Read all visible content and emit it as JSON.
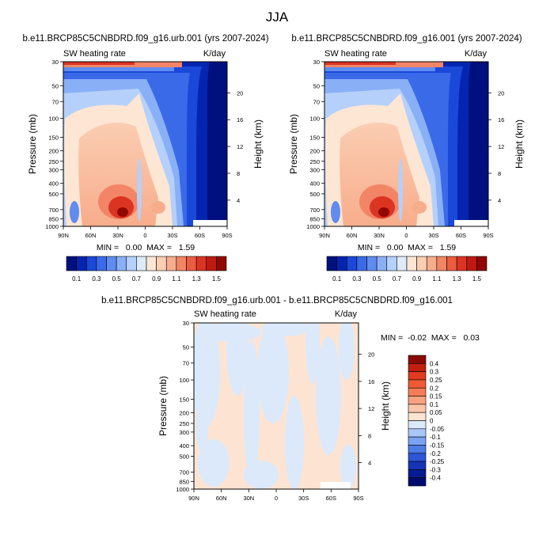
{
  "title": "JJA",
  "chart_data": [
    {
      "type": "heatmap",
      "title": "b.e11.BRCP85C5CNBDRD.f09_g16.urb.001 (yrs 2007-2024)",
      "left_label": "SW heating rate",
      "right_label": "K/day",
      "ylabel": "Pressure (mb)",
      "y2label": "Height (km)",
      "x_ticks": [
        "90N",
        "60N",
        "30N",
        "0",
        "30S",
        "60S",
        "90S"
      ],
      "y_ticks": [
        "30",
        "50",
        "70",
        "100",
        "150",
        "200",
        "250",
        "300",
        "400",
        "500",
        "700",
        "850",
        "1000"
      ],
      "y2_ticks": [
        "20",
        "16",
        "12",
        "8",
        "4"
      ],
      "stats": "MIN =   0.00  MAX =   1.59",
      "colorbar_labels": [
        "0.1",
        "0.3",
        "0.5",
        "0.7",
        "0.9",
        "1.1",
        "1.3",
        "1.5"
      ],
      "colors": [
        "#00107f",
        "#0525b0",
        "#1a48d8",
        "#3a6ae8",
        "#5f8cf0",
        "#89b0f7",
        "#b5d0fa",
        "#dcecfb",
        "#fde6d4",
        "#fbcdb2",
        "#f7ad8c",
        "#f28565",
        "#ec5c3f",
        "#dc3423",
        "#bf1a10",
        "#900802"
      ]
    },
    {
      "type": "heatmap",
      "title": "b.e11.BRCP85C5CNBDRD.f09_g16.001 (yrs 2007-2024)",
      "left_label": "SW heating rate",
      "right_label": "K/day",
      "ylabel": "Pressure (mb)",
      "y2label": "Height (km)",
      "x_ticks": [
        "90N",
        "60N",
        "30N",
        "0",
        "30S",
        "60S",
        "90S"
      ],
      "y_ticks": [
        "30",
        "50",
        "70",
        "100",
        "150",
        "200",
        "250",
        "300",
        "400",
        "500",
        "700",
        "850",
        "1000"
      ],
      "y2_ticks": [
        "20",
        "16",
        "12",
        "8",
        "4"
      ],
      "stats": "MIN =   0.00  MAX =   1.59",
      "colorbar_labels": [
        "0.1",
        "0.3",
        "0.5",
        "0.7",
        "0.9",
        "1.1",
        "1.3",
        "1.5"
      ],
      "colors": [
        "#00107f",
        "#0525b0",
        "#1a48d8",
        "#3a6ae8",
        "#5f8cf0",
        "#89b0f7",
        "#b5d0fa",
        "#dcecfb",
        "#fde6d4",
        "#fbcdb2",
        "#f7ad8c",
        "#f28565",
        "#ec5c3f",
        "#dc3423",
        "#bf1a10",
        "#900802"
      ]
    },
    {
      "type": "heatmap",
      "title": "b.e11.BRCP85C5CNBDRD.f09_g16.urb.001 - b.e11.BRCP85C5CNBDRD.f09_g16.001",
      "left_label": "SW heating rate",
      "right_label": "K/day",
      "ylabel": "Pressure (mb)",
      "y2label": "Height (km)",
      "x_ticks": [
        "90N",
        "60N",
        "30N",
        "0",
        "30S",
        "60S",
        "90S"
      ],
      "y_ticks": [
        "30",
        "50",
        "70",
        "100",
        "150",
        "200",
        "250",
        "300",
        "400",
        "500",
        "700",
        "850",
        "1000"
      ],
      "y2_ticks": [
        "20",
        "16",
        "12",
        "8",
        "4"
      ],
      "stats": "MIN =  -0.02  MAX =   0.03",
      "colorbar_labels": [
        "0.4",
        "0.3",
        "0.25",
        "0.2",
        "0.15",
        "0.1",
        "0.05",
        "0",
        "-0.05",
        "-0.1",
        "-0.15",
        "-0.2",
        "-0.25",
        "-0.3",
        "-0.4"
      ],
      "colors": [
        "#8b0a05",
        "#c0200f",
        "#e03a1f",
        "#f05a35",
        "#f57d55",
        "#f9a27f",
        "#fcc6aa",
        "#fde4d2",
        "#dbe9fb",
        "#a8c7f7",
        "#7aa3f0",
        "#4e7ce6",
        "#2c56d8",
        "#1534b5",
        "#061c92",
        "#000c6d"
      ],
      "diff_colors": {
        "positive": "#fde4d2",
        "negative": "#dbe9fb"
      }
    }
  ]
}
